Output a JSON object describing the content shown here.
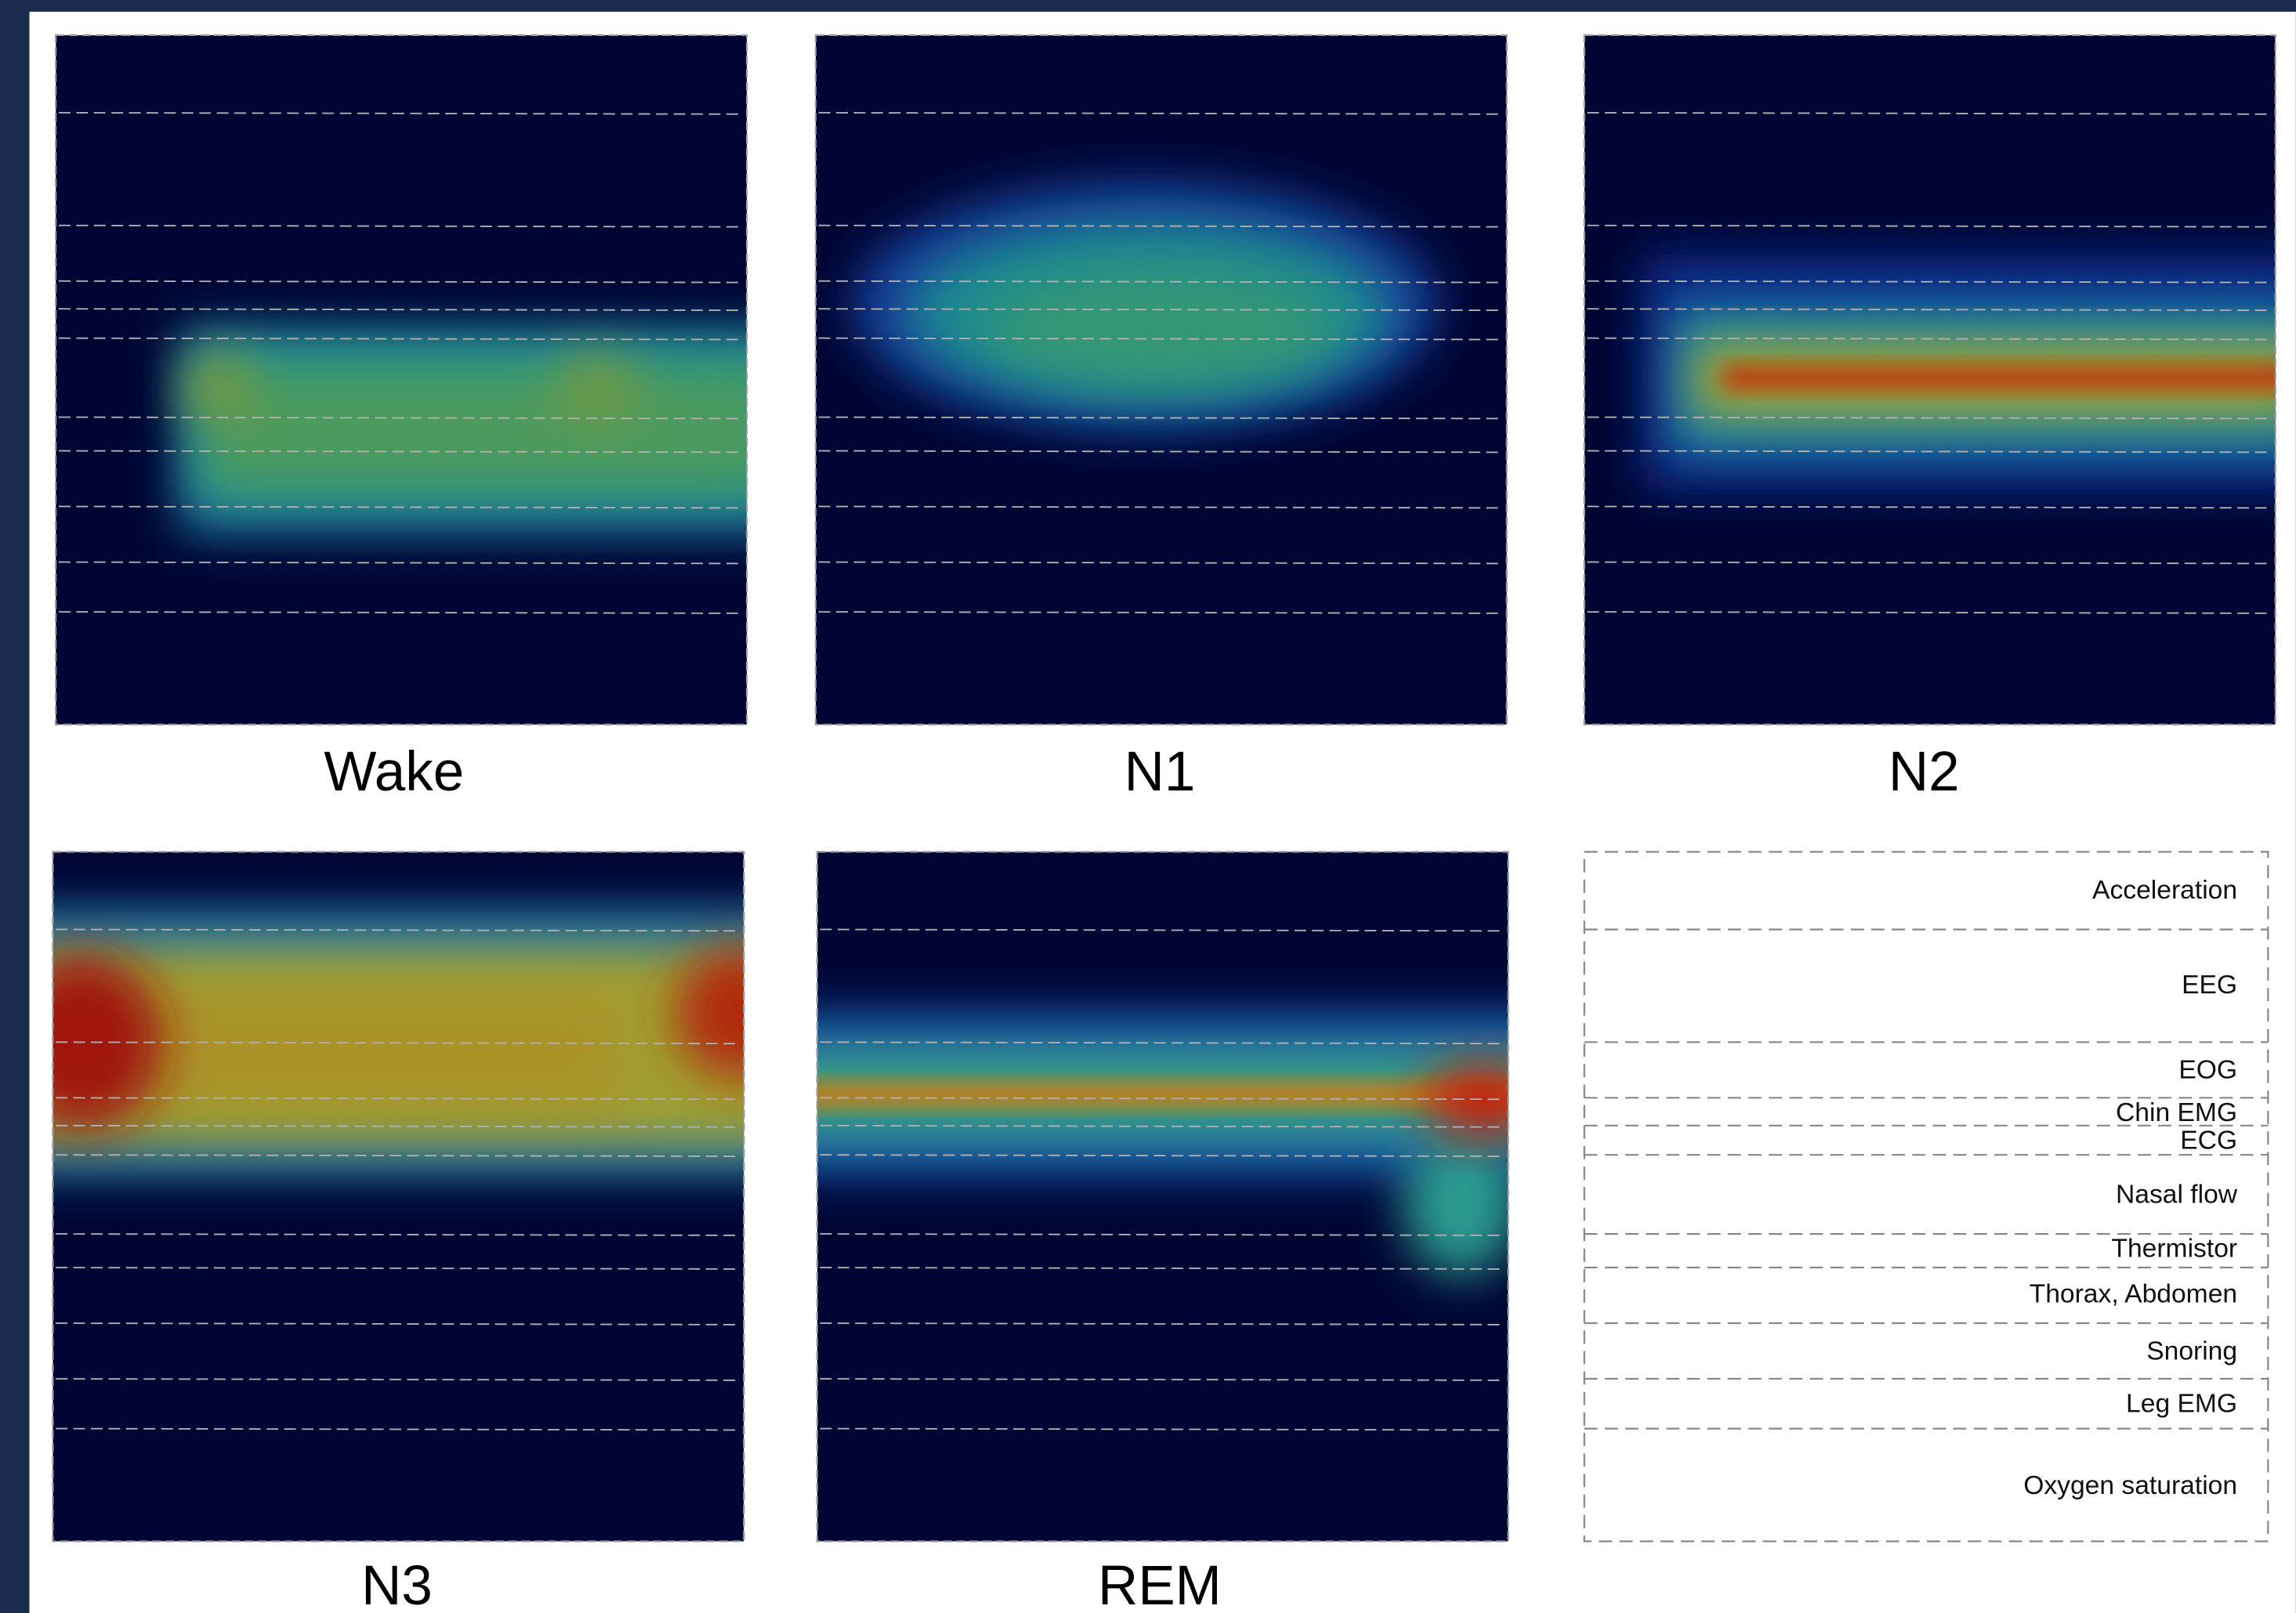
{
  "panels": [
    {
      "title": "Wake"
    },
    {
      "title": "N1"
    },
    {
      "title": "N2"
    },
    {
      "title": "N3"
    },
    {
      "title": "REM"
    }
  ],
  "channels": [
    "Acceleration",
    "EEG",
    "EOG",
    "Chin EMG",
    "ECG",
    "Nasal flow",
    "Thermistor",
    "Thorax, Abdomen",
    "Snoring",
    "Leg EMG",
    "Oxygen saturation"
  ]
}
